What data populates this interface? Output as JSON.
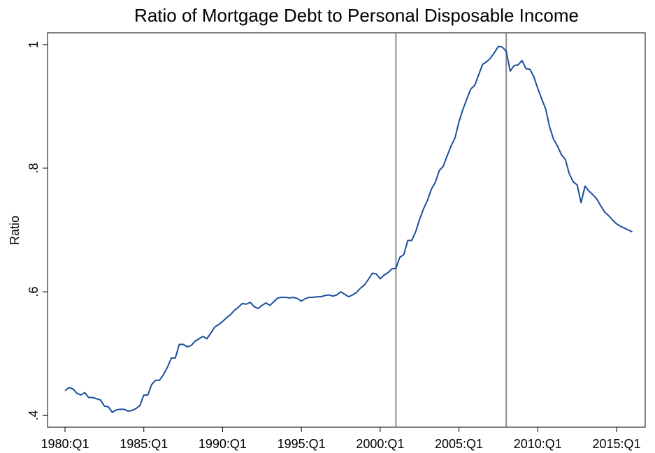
{
  "chart_data": {
    "type": "line",
    "title": "Ratio of Mortgage Debt to Personal Disposable Income",
    "y_label": "Ratio",
    "x": [
      1980,
      1980.25,
      1980.5,
      1980.75,
      1981,
      1981.25,
      1981.5,
      1981.75,
      1982,
      1982.25,
      1982.5,
      1982.75,
      1983,
      1983.25,
      1983.5,
      1983.75,
      1984,
      1984.25,
      1984.5,
      1984.75,
      1985,
      1985.25,
      1985.5,
      1985.75,
      1986,
      1986.25,
      1986.5,
      1986.75,
      1987,
      1987.25,
      1987.5,
      1987.75,
      1988,
      1988.25,
      1988.5,
      1988.75,
      1989,
      1989.25,
      1989.5,
      1989.75,
      1990,
      1990.25,
      1990.5,
      1990.75,
      1991,
      1991.25,
      1991.5,
      1991.75,
      1992,
      1992.25,
      1992.5,
      1992.75,
      1993,
      1993.25,
      1993.5,
      1993.75,
      1994,
      1994.25,
      1994.5,
      1994.75,
      1995,
      1995.25,
      1995.5,
      1995.75,
      1996,
      1996.25,
      1996.5,
      1996.75,
      1997,
      1997.25,
      1997.5,
      1997.75,
      1998,
      1998.25,
      1998.5,
      1998.75,
      1999,
      1999.25,
      1999.5,
      1999.75,
      2000,
      2000.25,
      2000.5,
      2000.75,
      2001,
      2001.25,
      2001.5,
      2001.75,
      2002,
      2002.25,
      2002.5,
      2002.75,
      2003,
      2003.25,
      2003.5,
      2003.75,
      2004,
      2004.25,
      2004.5,
      2004.75,
      2005,
      2005.25,
      2005.5,
      2005.75,
      2006,
      2006.25,
      2006.5,
      2006.75,
      2007,
      2007.25,
      2007.5,
      2007.75,
      2008,
      2008.25,
      2008.5,
      2008.75,
      2009,
      2009.25,
      2009.5,
      2009.75,
      2010,
      2010.25,
      2010.5,
      2010.75,
      2011,
      2011.25,
      2011.5,
      2011.75,
      2012,
      2012.25,
      2012.5,
      2012.75,
      2013,
      2013.25,
      2013.5,
      2013.75,
      2014,
      2014.25,
      2014.5,
      2014.75,
      2015,
      2015.25,
      2015.5,
      2015.75,
      2016
    ],
    "series": [
      {
        "color": "#1a4f9c",
        "values": [
          0.44,
          0.445,
          0.443,
          0.436,
          0.433,
          0.437,
          0.429,
          0.429,
          0.427,
          0.425,
          0.415,
          0.414,
          0.405,
          0.409,
          0.41,
          0.41,
          0.407,
          0.408,
          0.411,
          0.416,
          0.433,
          0.433,
          0.45,
          0.457,
          0.457,
          0.466,
          0.478,
          0.493,
          0.493,
          0.515,
          0.515,
          0.511,
          0.513,
          0.52,
          0.524,
          0.528,
          0.524,
          0.533,
          0.543,
          0.547,
          0.552,
          0.558,
          0.563,
          0.57,
          0.575,
          0.581,
          0.58,
          0.583,
          0.576,
          0.573,
          0.578,
          0.582,
          0.578,
          0.584,
          0.59,
          0.591,
          0.591,
          0.59,
          0.591,
          0.589,
          0.585,
          0.589,
          0.591,
          0.591,
          0.592,
          0.592,
          0.594,
          0.595,
          0.593,
          0.595,
          0.6,
          0.596,
          0.592,
          0.595,
          0.599,
          0.606,
          0.611,
          0.62,
          0.63,
          0.629,
          0.621,
          0.627,
          0.631,
          0.637,
          0.638,
          0.656,
          0.66,
          0.683,
          0.683,
          0.697,
          0.717,
          0.734,
          0.748,
          0.766,
          0.777,
          0.796,
          0.803,
          0.82,
          0.836,
          0.849,
          0.875,
          0.895,
          0.912,
          0.928,
          0.934,
          0.951,
          0.968,
          0.972,
          0.978,
          0.987,
          0.997,
          0.996,
          0.989,
          0.957,
          0.966,
          0.967,
          0.974,
          0.961,
          0.96,
          0.948,
          0.929,
          0.912,
          0.896,
          0.867,
          0.847,
          0.836,
          0.822,
          0.814,
          0.791,
          0.778,
          0.773,
          0.744,
          0.771,
          0.763,
          0.757,
          0.75,
          0.739,
          0.729,
          0.723,
          0.716,
          0.71,
          0.706,
          0.703,
          0.7,
          0.697
        ]
      }
    ],
    "vlines": [
      2001,
      2008
    ],
    "vline_color": "#8c8c8c",
    "xlim": [
      1978.89,
      2016.82
    ],
    "ylim": [
      0.381,
      1.019
    ],
    "xticks": [
      {
        "value": 1980,
        "label": "1980:Q1"
      },
      {
        "value": 1985,
        "label": "1985:Q1"
      },
      {
        "value": 1990,
        "label": "1990:Q1"
      },
      {
        "value": 1995,
        "label": "1995:Q1"
      },
      {
        "value": 2000,
        "label": "2000:Q1"
      },
      {
        "value": 2005,
        "label": "2005:Q1"
      },
      {
        "value": 2010,
        "label": "2010:Q1"
      },
      {
        "value": 2015,
        "label": "2015:Q1"
      }
    ],
    "yticks": [
      {
        "value": 0.4,
        "label": ".4"
      },
      {
        "value": 0.6,
        "label": ".6"
      },
      {
        "value": 0.8,
        "label": ".8"
      },
      1
    ]
  }
}
